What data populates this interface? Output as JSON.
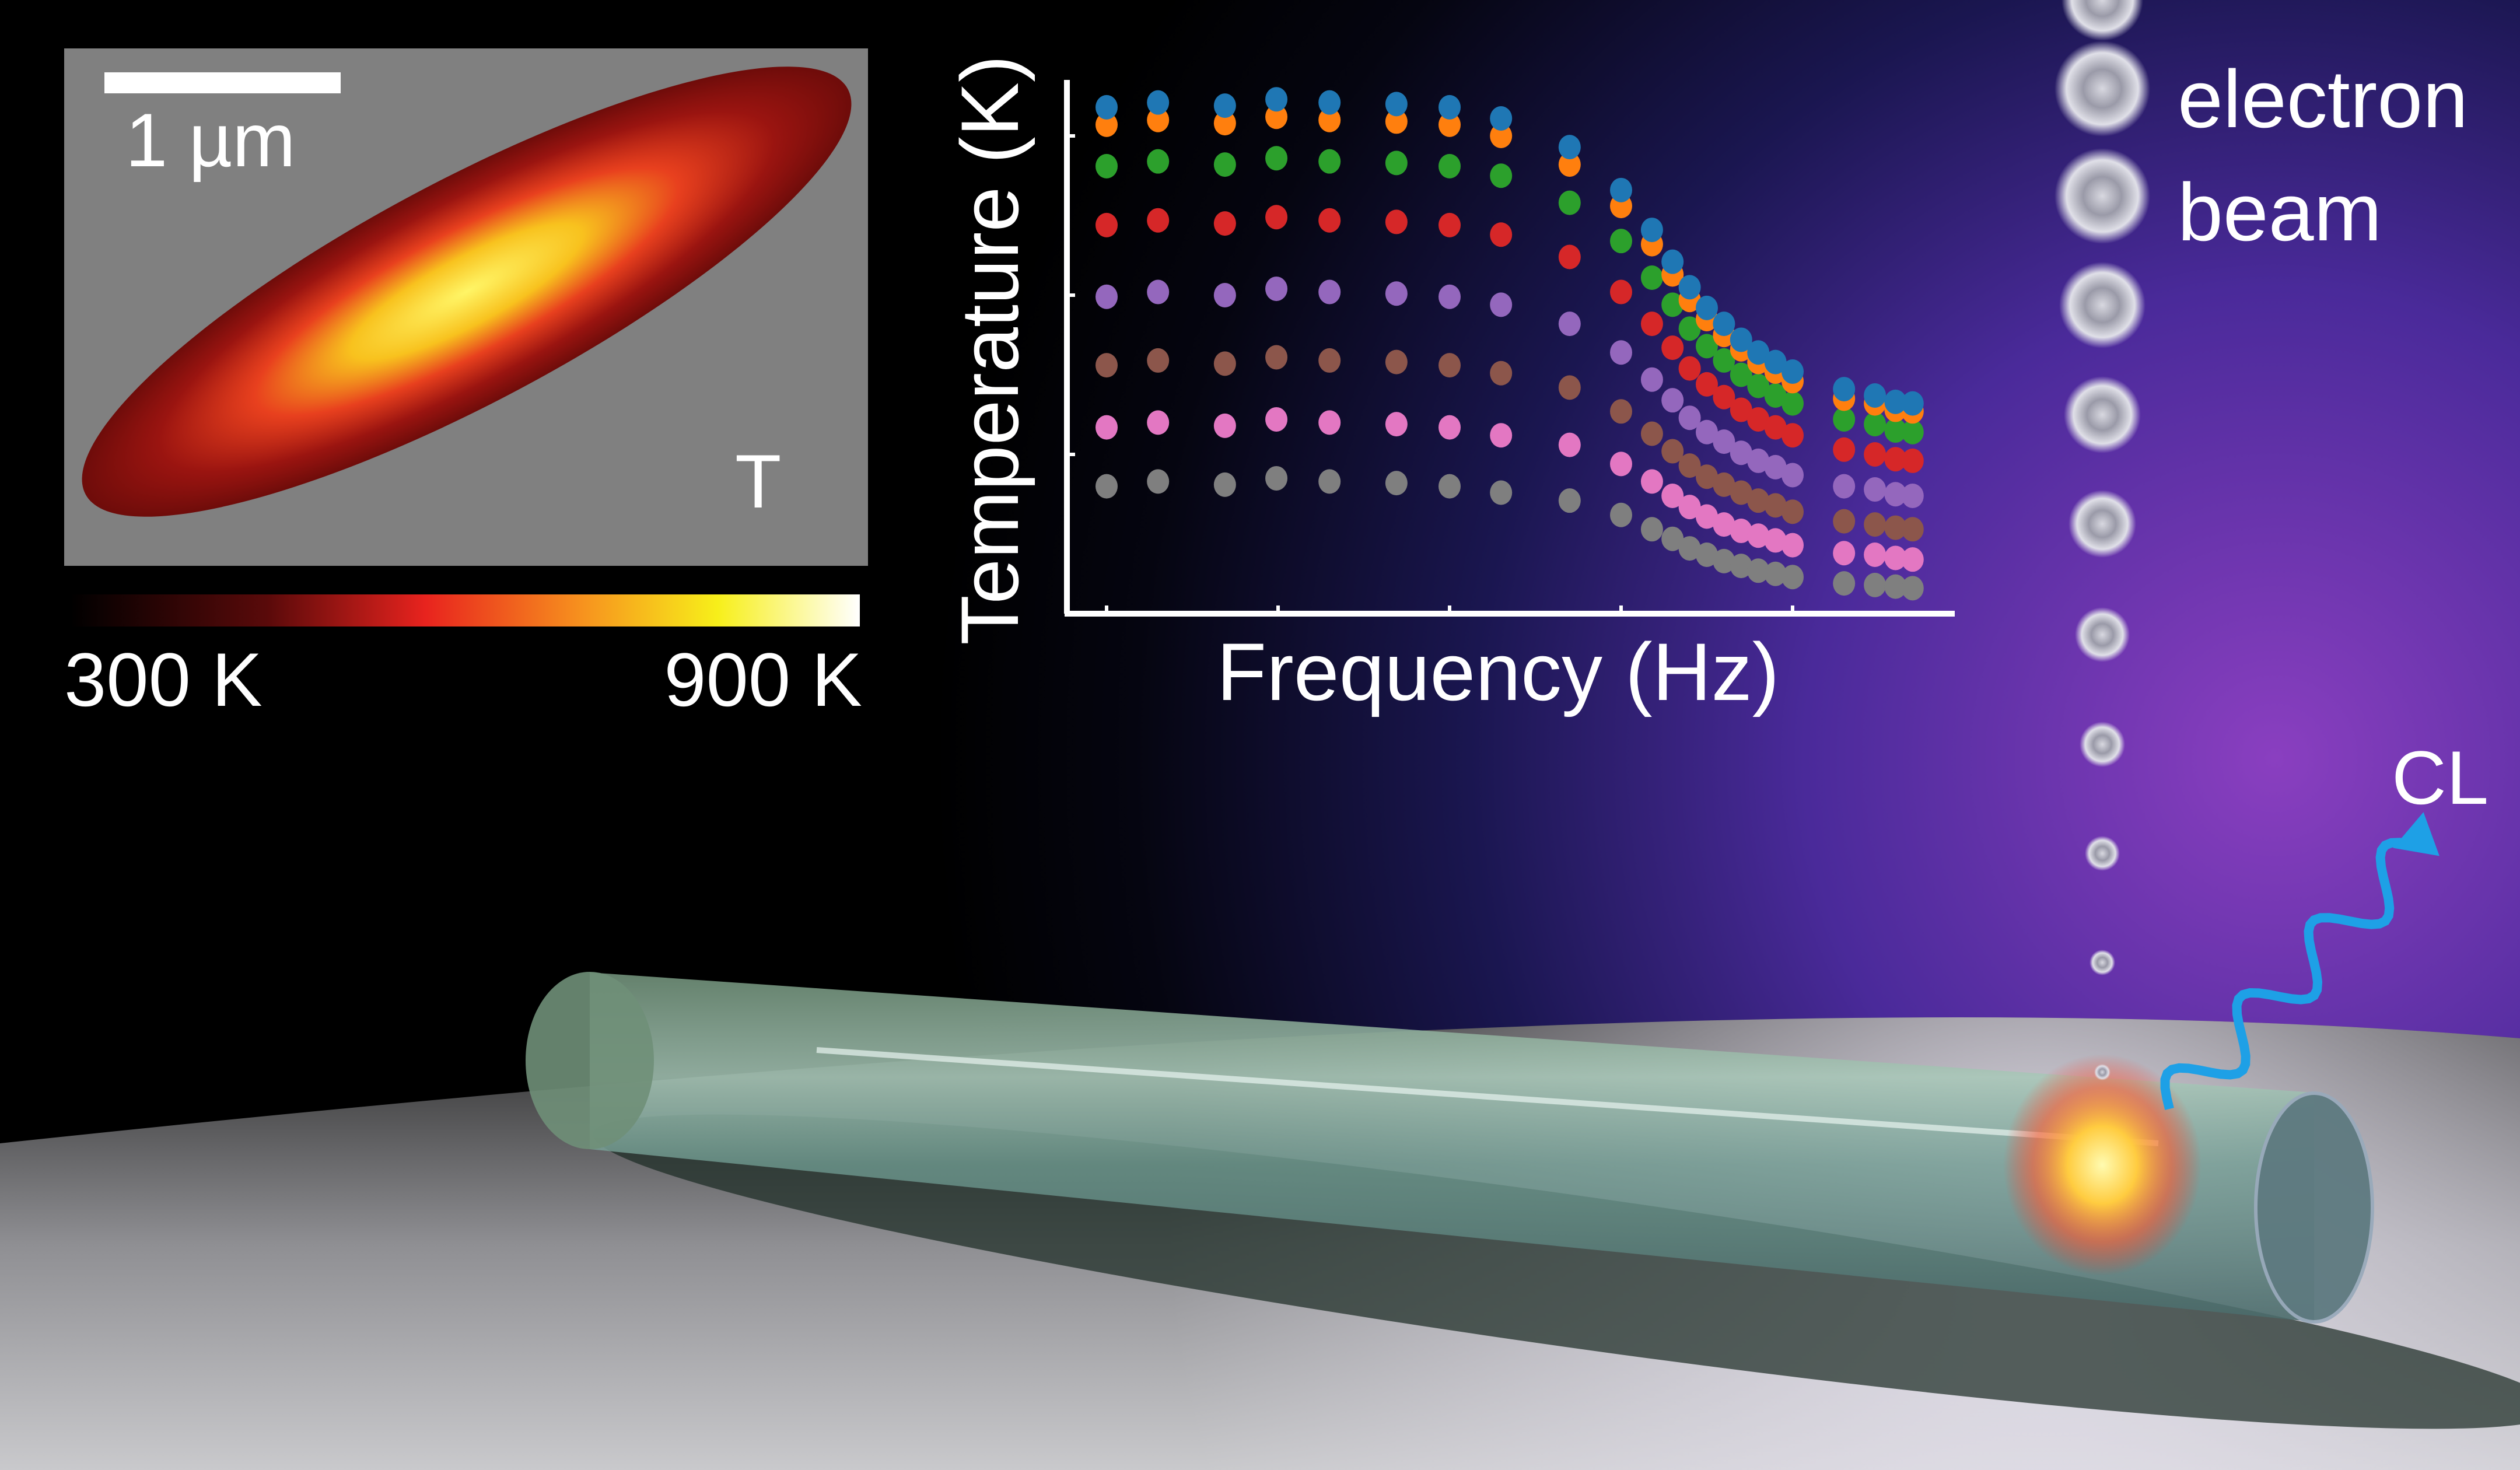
{
  "inset": {
    "scale_bar_label": "1 µm",
    "panel_label": "T",
    "colorbar_min": "300 K",
    "colorbar_max": "900 K",
    "colormap": [
      "#000000",
      "#5a0a0a",
      "#e8231e",
      "#f7931e",
      "#f7ef1a",
      "#ffffff"
    ],
    "background_color": "#808080"
  },
  "beam": {
    "label_line1": "electron",
    "label_line2": "beam"
  },
  "emission": {
    "label": "CL",
    "color": "#1ea0e6"
  },
  "chart_data": {
    "type": "scatter",
    "title": "",
    "xlabel": "Frequency (Hz)",
    "ylabel": "Temperature (K)",
    "xlim": [
      -0.2,
      5.0
    ],
    "ylim": [
      0,
      3.35
    ],
    "grid": false,
    "tick_labels": false,
    "x": [
      0,
      0.3,
      0.69,
      0.99,
      1.3,
      1.69,
      2.0,
      2.3,
      2.7,
      3.0,
      3.18,
      3.3,
      3.4,
      3.5,
      3.6,
      3.7,
      3.8,
      3.9,
      4.0,
      4.3,
      4.48,
      4.6,
      4.7
    ],
    "series": [
      {
        "color": "#1f77b4",
        "values": [
          3.18,
          3.21,
          3.19,
          3.23,
          3.21,
          3.2,
          3.18,
          3.11,
          2.93,
          2.66,
          2.41,
          2.21,
          2.05,
          1.92,
          1.82,
          1.72,
          1.64,
          1.58,
          1.52,
          1.41,
          1.37,
          1.33,
          1.32
        ]
      },
      {
        "color": "#ff7f0e",
        "values": [
          3.07,
          3.1,
          3.08,
          3.12,
          3.1,
          3.09,
          3.07,
          3.0,
          2.82,
          2.56,
          2.32,
          2.13,
          1.97,
          1.85,
          1.75,
          1.66,
          1.58,
          1.52,
          1.46,
          1.35,
          1.32,
          1.28,
          1.27
        ]
      },
      {
        "color": "#2ca02c",
        "values": [
          2.81,
          2.84,
          2.82,
          2.86,
          2.84,
          2.83,
          2.81,
          2.75,
          2.58,
          2.34,
          2.11,
          1.94,
          1.79,
          1.68,
          1.59,
          1.5,
          1.43,
          1.37,
          1.32,
          1.22,
          1.19,
          1.15,
          1.14
        ]
      },
      {
        "color": "#d62728",
        "values": [
          2.44,
          2.47,
          2.45,
          2.49,
          2.47,
          2.46,
          2.44,
          2.38,
          2.24,
          2.02,
          1.82,
          1.67,
          1.54,
          1.44,
          1.36,
          1.28,
          1.22,
          1.17,
          1.12,
          1.03,
          1.0,
          0.97,
          0.96
        ]
      },
      {
        "color": "#9467bd",
        "values": [
          1.99,
          2.02,
          2.0,
          2.04,
          2.02,
          2.01,
          1.99,
          1.94,
          1.82,
          1.64,
          1.47,
          1.34,
          1.23,
          1.14,
          1.08,
          1.01,
          0.96,
          0.92,
          0.87,
          0.8,
          0.78,
          0.75,
          0.74
        ]
      },
      {
        "color": "#8c564b",
        "values": [
          1.56,
          1.59,
          1.57,
          1.61,
          1.59,
          1.58,
          1.56,
          1.51,
          1.42,
          1.27,
          1.13,
          1.02,
          0.93,
          0.86,
          0.81,
          0.76,
          0.71,
          0.68,
          0.64,
          0.58,
          0.56,
          0.54,
          0.53
        ]
      },
      {
        "color": "#e377c2",
        "values": [
          1.17,
          1.2,
          1.18,
          1.22,
          1.2,
          1.19,
          1.17,
          1.12,
          1.06,
          0.94,
          0.83,
          0.74,
          0.67,
          0.61,
          0.56,
          0.52,
          0.49,
          0.46,
          0.43,
          0.38,
          0.37,
          0.35,
          0.34
        ]
      },
      {
        "color": "#7f7f7f",
        "values": [
          0.8,
          0.83,
          0.81,
          0.85,
          0.83,
          0.82,
          0.8,
          0.76,
          0.71,
          0.62,
          0.53,
          0.47,
          0.41,
          0.37,
          0.33,
          0.3,
          0.27,
          0.25,
          0.23,
          0.19,
          0.18,
          0.17,
          0.16
        ]
      }
    ]
  }
}
